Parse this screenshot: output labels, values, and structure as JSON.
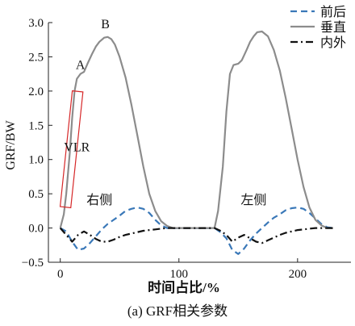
{
  "chart_data": {
    "type": "line",
    "title": "",
    "caption": "(a) GRF相关参数",
    "xlabel": "时间占比/%",
    "ylabel": "GRF/BW",
    "xlim": [
      -10,
      245
    ],
    "ylim": [
      -0.5,
      3.0
    ],
    "xticks": [
      0,
      100,
      200
    ],
    "xtick_labels": [
      "0",
      "100",
      "200"
    ],
    "yticks": [
      -0.5,
      0.0,
      0.5,
      1.0,
      1.5,
      2.0,
      2.5,
      3.0
    ],
    "ytick_labels": [
      "−0.5",
      "0.0",
      "0.5",
      "1.0",
      "1.5",
      "2.0",
      "2.5",
      "3.0"
    ],
    "grid": false,
    "legend_position": "top-right",
    "colors": {
      "vertical": "#8c8c8c",
      "anteroposterior": "#3a78b8",
      "mediolateral": "#111111",
      "vlr_box": "#d62728"
    },
    "series": [
      {
        "name": "前后",
        "style": "dashed",
        "x": [
          0,
          5,
          10,
          15,
          20,
          25,
          30,
          35,
          40,
          45,
          50,
          55,
          60,
          65,
          70,
          75,
          80,
          85,
          90,
          95,
          100,
          105,
          110,
          115,
          120,
          125,
          130,
          135,
          140,
          145,
          150,
          155,
          160,
          165,
          170,
          175,
          180,
          185,
          190,
          195,
          200,
          205,
          210,
          215,
          220,
          225,
          230
        ],
        "y": [
          0.0,
          -0.05,
          -0.2,
          -0.32,
          -0.3,
          -0.22,
          -0.12,
          -0.02,
          0.06,
          0.12,
          0.18,
          0.25,
          0.28,
          0.3,
          0.28,
          0.22,
          0.12,
          0.04,
          0.0,
          0.0,
          0.0,
          0.0,
          0.0,
          0.0,
          0.0,
          0.0,
          0.0,
          -0.06,
          -0.15,
          -0.32,
          -0.38,
          -0.3,
          -0.18,
          -0.08,
          0.0,
          0.08,
          0.15,
          0.2,
          0.26,
          0.29,
          0.3,
          0.28,
          0.22,
          0.14,
          0.06,
          0.01,
          0.0
        ]
      },
      {
        "name": "垂直",
        "style": "solid",
        "x": [
          0,
          3,
          5,
          8,
          10,
          12,
          14,
          17,
          20,
          23,
          27,
          30,
          33,
          37,
          40,
          43,
          46,
          50,
          55,
          60,
          65,
          70,
          75,
          80,
          85,
          90,
          95,
          100,
          110,
          120,
          130,
          133,
          137,
          140,
          143,
          146,
          150,
          153,
          157,
          160,
          163,
          166,
          170,
          175,
          180,
          185,
          190,
          195,
          200,
          205,
          210,
          215,
          220,
          225,
          230
        ],
        "y": [
          0.0,
          0.2,
          0.5,
          1.1,
          1.6,
          2.0,
          2.18,
          2.25,
          2.28,
          2.4,
          2.55,
          2.65,
          2.72,
          2.78,
          2.79,
          2.76,
          2.68,
          2.5,
          2.2,
          1.8,
          1.35,
          0.9,
          0.5,
          0.25,
          0.1,
          0.03,
          0.0,
          0.0,
          0.0,
          0.0,
          0.0,
          0.25,
          0.9,
          1.7,
          2.25,
          2.38,
          2.4,
          2.45,
          2.6,
          2.72,
          2.8,
          2.86,
          2.87,
          2.8,
          2.6,
          2.3,
          1.9,
          1.45,
          1.0,
          0.6,
          0.3,
          0.12,
          0.04,
          0.0,
          0.0
        ]
      },
      {
        "name": "内外",
        "style": "dashdot",
        "x": [
          0,
          5,
          10,
          15,
          20,
          25,
          30,
          35,
          40,
          45,
          50,
          55,
          60,
          65,
          70,
          75,
          80,
          85,
          90,
          95,
          100,
          110,
          120,
          125,
          130,
          135,
          140,
          145,
          150,
          155,
          160,
          165,
          170,
          175,
          180,
          185,
          190,
          195,
          200,
          205,
          210,
          215,
          220,
          225,
          230
        ],
        "y": [
          0.0,
          -0.1,
          -0.2,
          -0.1,
          -0.05,
          -0.1,
          -0.16,
          -0.2,
          -0.2,
          -0.17,
          -0.13,
          -0.1,
          -0.08,
          -0.06,
          -0.04,
          -0.03,
          -0.02,
          -0.01,
          0.0,
          0.0,
          0.0,
          0.0,
          0.0,
          0.0,
          0.0,
          -0.04,
          -0.1,
          -0.2,
          -0.14,
          -0.1,
          -0.15,
          -0.2,
          -0.22,
          -0.18,
          -0.14,
          -0.1,
          -0.07,
          -0.05,
          -0.03,
          -0.02,
          -0.01,
          0.0,
          0.0,
          0.0,
          0.0
        ]
      }
    ],
    "annotations": [
      {
        "text": "A",
        "x": 17,
        "y": 2.32
      },
      {
        "text": "B",
        "x": 38,
        "y": 2.92
      },
      {
        "text": "VLR",
        "x": 14,
        "y": 1.12
      },
      {
        "text": "右侧",
        "x": 33,
        "y": 0.35
      },
      {
        "text": "左侧",
        "x": 163,
        "y": 0.35
      }
    ],
    "vlr_box": {
      "x": [
        5,
        14
      ],
      "y": [
        0.3,
        2.0
      ]
    }
  }
}
